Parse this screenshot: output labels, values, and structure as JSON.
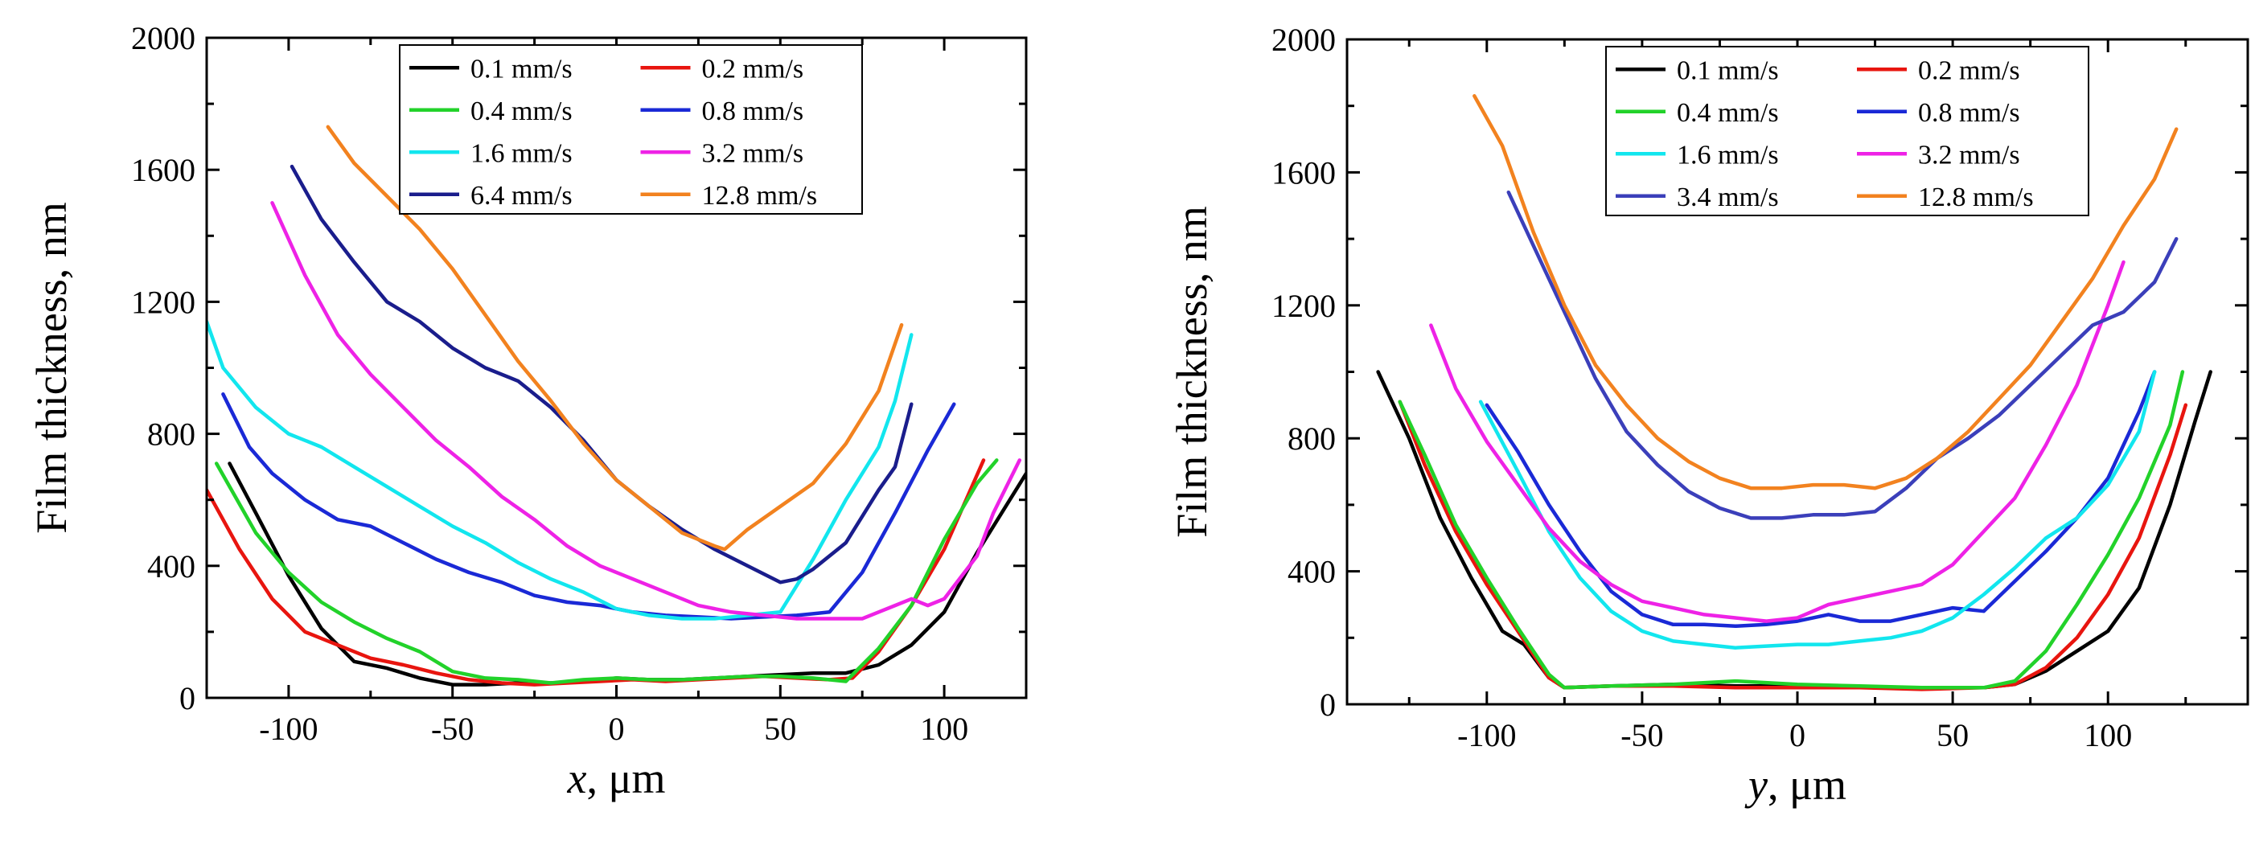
{
  "chart_data": [
    {
      "type": "line",
      "xlabel": "x, μm",
      "xlabel_var": "x",
      "xlabel_unit": ", μm",
      "ylabel": "Film thickness, nm",
      "xlim": [
        -125,
        125
      ],
      "ylim": [
        0,
        2000
      ],
      "xticks": [
        -100,
        -50,
        0,
        50,
        100
      ],
      "yticks": [
        0,
        400,
        800,
        1200,
        1600,
        2000
      ],
      "legend_placement": "top-center",
      "series": [
        {
          "name": "0.1 mm/s",
          "color": "#000000",
          "x": [
            -118,
            -110,
            -100,
            -90,
            -80,
            -70,
            -60,
            -50,
            -40,
            -30,
            -20,
            -10,
            0,
            10,
            20,
            30,
            40,
            50,
            60,
            70,
            80,
            90,
            100,
            110,
            125
          ],
          "y": [
            710,
            560,
            370,
            210,
            110,
            90,
            60,
            40,
            40,
            45,
            45,
            50,
            60,
            55,
            55,
            60,
            65,
            70,
            75,
            75,
            100,
            160,
            260,
            440,
            680
          ]
        },
        {
          "name": "0.2 mm/s",
          "color": "#e8150f",
          "x": [
            -125,
            -115,
            -105,
            -95,
            -85,
            -75,
            -65,
            -55,
            -45,
            -35,
            -25,
            -15,
            -5,
            5,
            15,
            25,
            35,
            45,
            55,
            65,
            72,
            80,
            90,
            100,
            112
          ],
          "y": [
            630,
            450,
            300,
            200,
            160,
            120,
            100,
            75,
            55,
            45,
            40,
            45,
            50,
            55,
            50,
            55,
            60,
            65,
            60,
            55,
            60,
            140,
            280,
            450,
            720
          ]
        },
        {
          "name": "0.4 mm/s",
          "color": "#22d22a",
          "x": [
            -122,
            -110,
            -100,
            -90,
            -80,
            -70,
            -60,
            -50,
            -40,
            -30,
            -20,
            -10,
            0,
            10,
            20,
            30,
            40,
            50,
            60,
            70,
            80,
            90,
            100,
            110,
            116
          ],
          "y": [
            710,
            500,
            380,
            290,
            230,
            180,
            140,
            80,
            60,
            55,
            45,
            55,
            60,
            55,
            55,
            60,
            65,
            65,
            60,
            50,
            150,
            280,
            480,
            650,
            720
          ]
        },
        {
          "name": "0.8 mm/s",
          "color": "#1a29d6",
          "x": [
            -120,
            -112,
            -105,
            -95,
            -85,
            -75,
            -65,
            -55,
            -45,
            -35,
            -25,
            -15,
            -5,
            5,
            15,
            25,
            35,
            45,
            55,
            65,
            75,
            85,
            95,
            103
          ],
          "y": [
            920,
            760,
            680,
            600,
            540,
            520,
            470,
            420,
            380,
            350,
            310,
            290,
            280,
            260,
            250,
            245,
            240,
            245,
            250,
            260,
            380,
            560,
            750,
            890
          ]
        },
        {
          "name": "1.6 mm/s",
          "color": "#12e6ee",
          "x": [
            -125,
            -120,
            -110,
            -100,
            -90,
            -80,
            -70,
            -60,
            -50,
            -40,
            -30,
            -20,
            -10,
            0,
            10,
            20,
            30,
            40,
            50,
            60,
            70,
            80,
            85,
            90
          ],
          "y": [
            1140,
            1000,
            880,
            800,
            760,
            700,
            640,
            580,
            520,
            470,
            410,
            360,
            320,
            270,
            250,
            240,
            240,
            250,
            260,
            420,
            600,
            760,
            900,
            1100
          ]
        },
        {
          "name": "3.2 mm/s",
          "color": "#ee22e6",
          "x": [
            -105,
            -95,
            -85,
            -75,
            -65,
            -55,
            -45,
            -35,
            -25,
            -15,
            -5,
            5,
            15,
            25,
            35,
            45,
            55,
            65,
            75,
            85,
            90,
            95,
            100,
            110,
            115,
            123
          ],
          "y": [
            1500,
            1280,
            1100,
            980,
            880,
            780,
            700,
            610,
            540,
            460,
            400,
            360,
            320,
            280,
            260,
            250,
            240,
            240,
            240,
            280,
            300,
            280,
            300,
            430,
            560,
            720
          ]
        },
        {
          "name": "6.4 mm/s",
          "color": "#1a1d8c",
          "x": [
            -99,
            -90,
            -80,
            -70,
            -60,
            -50,
            -40,
            -30,
            -20,
            -10,
            0,
            10,
            20,
            30,
            40,
            50,
            55,
            60,
            70,
            80,
            85,
            90
          ],
          "y": [
            1610,
            1450,
            1320,
            1200,
            1140,
            1060,
            1000,
            960,
            880,
            780,
            660,
            580,
            510,
            450,
            400,
            350,
            360,
            390,
            470,
            630,
            700,
            890
          ]
        },
        {
          "name": "12.8 mm/s",
          "color": "#f2821f",
          "x": [
            -88,
            -80,
            -70,
            -60,
            -50,
            -40,
            -30,
            -20,
            -10,
            0,
            10,
            20,
            30,
            33,
            40,
            50,
            60,
            70,
            80,
            87
          ],
          "y": [
            1730,
            1620,
            1520,
            1420,
            1300,
            1160,
            1020,
            900,
            770,
            660,
            580,
            500,
            460,
            450,
            510,
            580,
            650,
            770,
            930,
            1130
          ]
        }
      ]
    },
    {
      "type": "line",
      "xlabel": "y, μm",
      "xlabel_var": "y",
      "xlabel_unit": ", μm",
      "ylabel": "Film thickness, nm",
      "xlim": [
        -145,
        145
      ],
      "ylim": [
        0,
        2000
      ],
      "xticks": [
        -100,
        -50,
        0,
        50,
        100
      ],
      "yticks": [
        0,
        400,
        800,
        1200,
        1600,
        2000
      ],
      "legend_placement": "top-center",
      "series": [
        {
          "name": "0.1 mm/s",
          "color": "#000000",
          "x": [
            -135,
            -125,
            -115,
            -105,
            -95,
            -88,
            -80,
            -75,
            -60,
            -40,
            -20,
            0,
            20,
            40,
            60,
            70,
            80,
            90,
            100,
            110,
            120,
            128,
            133
          ],
          "y": [
            1000,
            800,
            560,
            380,
            220,
            180,
            80,
            50,
            55,
            60,
            55,
            55,
            50,
            50,
            50,
            60,
            100,
            160,
            220,
            350,
            600,
            850,
            1000
          ]
        },
        {
          "name": "0.2 mm/s",
          "color": "#e8150f",
          "x": [
            -128,
            -120,
            -110,
            -100,
            -90,
            -80,
            -75,
            -60,
            -40,
            -20,
            0,
            20,
            40,
            60,
            70,
            80,
            90,
            100,
            110,
            120,
            125
          ],
          "y": [
            910,
            720,
            520,
            360,
            220,
            80,
            50,
            55,
            55,
            50,
            50,
            50,
            45,
            50,
            60,
            110,
            200,
            330,
            500,
            750,
            900
          ]
        },
        {
          "name": "0.4 mm/s",
          "color": "#22d22a",
          "x": [
            -128,
            -120,
            -110,
            -100,
            -90,
            -80,
            -75,
            -60,
            -40,
            -20,
            0,
            20,
            40,
            60,
            70,
            80,
            90,
            100,
            110,
            120,
            124
          ],
          "y": [
            910,
            750,
            540,
            380,
            230,
            90,
            50,
            55,
            60,
            70,
            60,
            55,
            50,
            50,
            70,
            160,
            300,
            450,
            620,
            840,
            1000
          ]
        },
        {
          "name": "0.8 mm/s",
          "color": "#1a29d6",
          "x": [
            -100,
            -90,
            -80,
            -70,
            -60,
            -50,
            -40,
            -30,
            -20,
            -10,
            0,
            10,
            20,
            30,
            40,
            50,
            60,
            70,
            80,
            90,
            100,
            110,
            115
          ],
          "y": [
            900,
            760,
            600,
            460,
            340,
            270,
            240,
            240,
            235,
            240,
            250,
            270,
            250,
            250,
            270,
            290,
            280,
            370,
            460,
            560,
            680,
            880,
            1000
          ]
        },
        {
          "name": "1.6 mm/s",
          "color": "#12e6ee",
          "x": [
            -102,
            -90,
            -80,
            -70,
            -60,
            -50,
            -40,
            -30,
            -20,
            -10,
            0,
            10,
            20,
            30,
            40,
            50,
            60,
            70,
            80,
            90,
            100,
            110,
            115
          ],
          "y": [
            910,
            700,
            520,
            380,
            280,
            220,
            190,
            180,
            170,
            175,
            180,
            180,
            190,
            200,
            220,
            260,
            330,
            410,
            500,
            560,
            660,
            820,
            1000
          ]
        },
        {
          "name": "3.2 mm/s",
          "color": "#ee22e6",
          "x": [
            -118,
            -110,
            -100,
            -90,
            -80,
            -70,
            -60,
            -50,
            -40,
            -30,
            -20,
            -10,
            0,
            10,
            20,
            30,
            40,
            50,
            60,
            70,
            80,
            90,
            100,
            105
          ],
          "y": [
            1140,
            950,
            790,
            660,
            530,
            430,
            360,
            310,
            290,
            270,
            260,
            250,
            260,
            300,
            320,
            340,
            360,
            420,
            520,
            620,
            780,
            960,
            1200,
            1330
          ]
        },
        {
          "name": "3.4 mm/s",
          "color": "#3b3fba",
          "x": [
            -93,
            -85,
            -75,
            -65,
            -55,
            -45,
            -35,
            -25,
            -15,
            -5,
            5,
            15,
            25,
            35,
            45,
            55,
            65,
            75,
            85,
            95,
            105,
            115,
            122
          ],
          "y": [
            1540,
            1380,
            1180,
            980,
            820,
            720,
            640,
            590,
            560,
            560,
            570,
            570,
            580,
            650,
            740,
            800,
            870,
            960,
            1050,
            1140,
            1180,
            1270,
            1400
          ]
        },
        {
          "name": "12.8 mm/s",
          "color": "#f2821f",
          "x": [
            -104,
            -95,
            -85,
            -75,
            -65,
            -55,
            -45,
            -35,
            -25,
            -15,
            -5,
            5,
            15,
            25,
            35,
            45,
            55,
            65,
            75,
            85,
            95,
            105,
            115,
            122
          ],
          "y": [
            1830,
            1680,
            1420,
            1200,
            1020,
            900,
            800,
            730,
            680,
            650,
            650,
            660,
            660,
            650,
            680,
            740,
            820,
            920,
            1020,
            1150,
            1280,
            1440,
            1580,
            1730
          ]
        }
      ]
    }
  ]
}
